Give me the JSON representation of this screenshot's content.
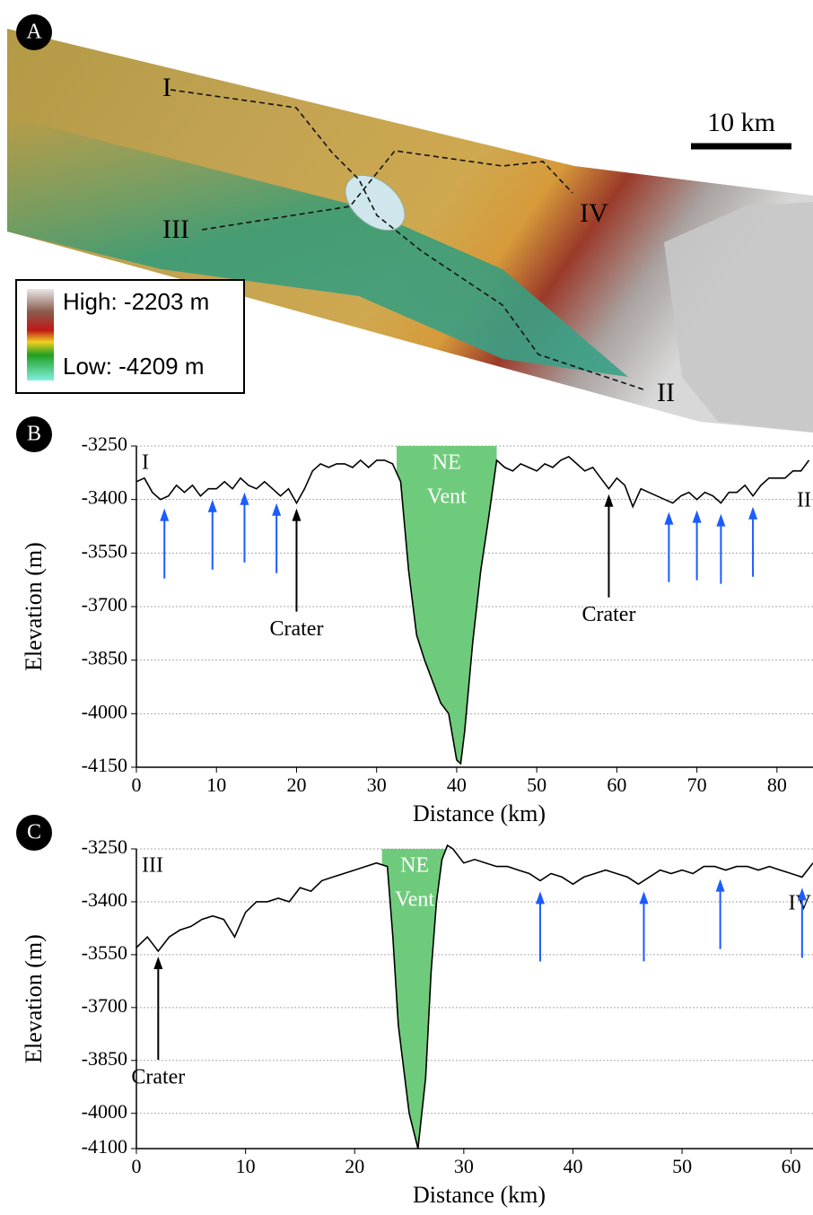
{
  "map": {
    "panel_label": "A",
    "scale_bar": "10 km",
    "legend": {
      "high": "High: -2203 m",
      "low": "Low: -4209 m"
    },
    "profile_labels": [
      "I",
      "II",
      "III",
      "IV"
    ]
  },
  "chart_data": [
    {
      "type": "line",
      "panel_label": "B",
      "ylabel": "Elevation (m)",
      "xlabel": "Distance (km)",
      "start_label": "I",
      "end_label": "II",
      "color": "#000000",
      "grid": true,
      "xlim": [
        0,
        84.5
      ],
      "xticks": [
        0,
        10,
        20,
        30,
        40,
        50,
        60,
        70,
        80
      ],
      "ylim": [
        -4150,
        -3250
      ],
      "yticks": [
        -3250,
        -3400,
        -3550,
        -3700,
        -3850,
        -4000,
        -4150
      ],
      "x": [
        0,
        1,
        2,
        3,
        4,
        5,
        6,
        7,
        8,
        9,
        10,
        11,
        12,
        13,
        14,
        15,
        16,
        17,
        18,
        19,
        20,
        21,
        22,
        23,
        24,
        25,
        26,
        27,
        28,
        29,
        30,
        31,
        32,
        33,
        34,
        35,
        36,
        37,
        38,
        39,
        40,
        40.5,
        41,
        42,
        43,
        44,
        45,
        46,
        47,
        48,
        49,
        50,
        51,
        52,
        53,
        54,
        55,
        56,
        57,
        58,
        59,
        60,
        61,
        62,
        63,
        64,
        65,
        66,
        67,
        68,
        69,
        70,
        71,
        72,
        73,
        74,
        75,
        76,
        77,
        78,
        79,
        80,
        81,
        82,
        83,
        84
      ],
      "values": [
        -3350,
        -3340,
        -3380,
        -3400,
        -3390,
        -3360,
        -3380,
        -3360,
        -3390,
        -3370,
        -3370,
        -3350,
        -3370,
        -3340,
        -3360,
        -3370,
        -3350,
        -3370,
        -3390,
        -3370,
        -3410,
        -3370,
        -3320,
        -3300,
        -3310,
        -3300,
        -3300,
        -3310,
        -3290,
        -3310,
        -3290,
        -3290,
        -3300,
        -3350,
        -3600,
        -3780,
        -3850,
        -3910,
        -3970,
        -4000,
        -4130,
        -4140,
        -4050,
        -3800,
        -3600,
        -3450,
        -3290,
        -3310,
        -3320,
        -3300,
        -3310,
        -3320,
        -3300,
        -3310,
        -3290,
        -3280,
        -3300,
        -3320,
        -3310,
        -3340,
        -3370,
        -3340,
        -3360,
        -3420,
        -3370,
        -3380,
        -3390,
        -3400,
        -3410,
        -3390,
        -3380,
        -3400,
        -3380,
        -3390,
        -3410,
        -3380,
        -3380,
        -3360,
        -3390,
        -3360,
        -3340,
        -3340,
        -3340,
        -3320,
        -3320,
        -3290
      ],
      "vent": {
        "label_lines": [
          "NE",
          "Vent"
        ],
        "x_range": [
          32.5,
          45
        ],
        "color": "#6fcb7c"
      },
      "blue_arrows_x": [
        3.5,
        9.5,
        13.5,
        17.5,
        66.5,
        70,
        73,
        77
      ],
      "craters": [
        {
          "text": "Crater",
          "x": 20
        },
        {
          "text": "Crater",
          "x": 59
        }
      ]
    },
    {
      "type": "line",
      "panel_label": "C",
      "ylabel": "Elevation (m)",
      "xlabel": "Distance (km)",
      "start_label": "III",
      "end_label": "IV",
      "color": "#000000",
      "grid": true,
      "xlim": [
        0,
        62
      ],
      "xticks": [
        0,
        10,
        20,
        30,
        40,
        50,
        60
      ],
      "ylim": [
        -4100,
        -3250
      ],
      "yticks": [
        -3250,
        -3400,
        -3550,
        -3700,
        -3850,
        -4000,
        -4100
      ],
      "x": [
        0,
        1,
        2,
        3,
        4,
        5,
        6,
        7,
        8,
        9,
        10,
        11,
        12,
        13,
        14,
        15,
        16,
        17,
        18,
        19,
        20,
        21,
        22,
        23,
        23.5,
        24,
        25,
        25.8,
        26.5,
        27,
        27.5,
        28,
        28.5,
        29,
        30,
        31,
        32,
        33,
        34,
        35,
        36,
        37,
        38,
        39,
        40,
        41,
        42,
        43,
        44,
        45,
        46,
        47,
        48,
        49,
        50,
        51,
        52,
        53,
        54,
        55,
        56,
        57,
        58,
        59,
        60,
        61,
        62
      ],
      "values": [
        -3530,
        -3500,
        -3540,
        -3500,
        -3480,
        -3470,
        -3450,
        -3440,
        -3450,
        -3500,
        -3430,
        -3400,
        -3400,
        -3390,
        -3400,
        -3360,
        -3370,
        -3340,
        -3330,
        -3320,
        -3310,
        -3300,
        -3290,
        -3300,
        -3500,
        -3750,
        -4000,
        -4100,
        -3900,
        -3600,
        -3400,
        -3280,
        -3240,
        -3250,
        -3290,
        -3280,
        -3290,
        -3300,
        -3300,
        -3310,
        -3320,
        -3340,
        -3320,
        -3330,
        -3350,
        -3330,
        -3320,
        -3310,
        -3320,
        -3330,
        -3350,
        -3330,
        -3310,
        -3320,
        -3310,
        -3320,
        -3300,
        -3300,
        -3310,
        -3300,
        -3300,
        -3310,
        -3300,
        -3310,
        -3320,
        -3330,
        -3290
      ],
      "vent": {
        "label_lines": [
          "NE",
          "Vent"
        ],
        "x_range": [
          22.5,
          28.5
        ],
        "color": "#6fcb7c"
      },
      "blue_arrows_x": [
        37,
        46.5,
        53.5,
        61
      ],
      "craters": [
        {
          "text": "Crater",
          "x": 2
        }
      ]
    }
  ]
}
